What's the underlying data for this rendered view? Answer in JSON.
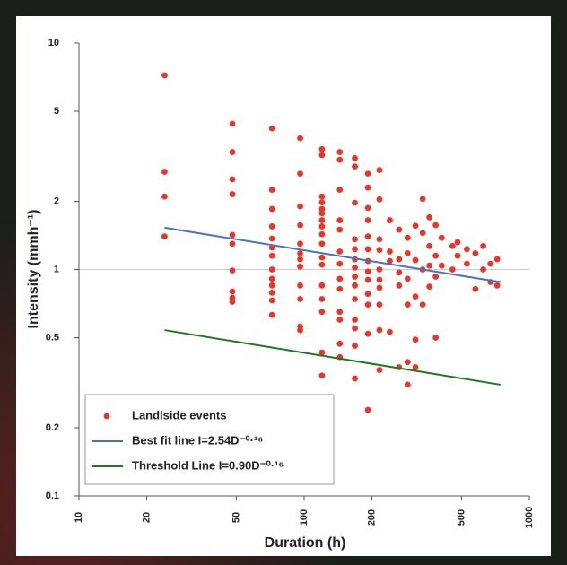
{
  "chart_data": {
    "type": "scatter",
    "x_label": "Duration (h)",
    "y_label": "Intensity (mmh⁻¹)",
    "log_x": true,
    "log_y": true,
    "xlim": [
      10,
      1000
    ],
    "xticks": [
      10,
      20,
      50,
      100,
      200,
      500,
      1000
    ],
    "ylim": [
      0.1,
      10
    ],
    "yticks": [
      0.1,
      0.2,
      0.5,
      1,
      2,
      5,
      10
    ],
    "reference_line_y": 1,
    "legend": "lower left",
    "series": [
      {
        "name": "Landlside events",
        "type": "scatter",
        "color": "#e8372a",
        "x": [
          24,
          24,
          24,
          24,
          48,
          48,
          48,
          48,
          48,
          48,
          48,
          48,
          48,
          48,
          72,
          72,
          72,
          72,
          72,
          72,
          72,
          72,
          72,
          72,
          72,
          72,
          72,
          96,
          96,
          96,
          96,
          96,
          96,
          96,
          96,
          96,
          96,
          96,
          96,
          120,
          120,
          120,
          120,
          120,
          120,
          120,
          120,
          120,
          120,
          120,
          120,
          120,
          120,
          120,
          120,
          120,
          144,
          144,
          144,
          144,
          144,
          144,
          144,
          144,
          144,
          144,
          144,
          144,
          144,
          168,
          168,
          168,
          168,
          168,
          168,
          168,
          168,
          168,
          168,
          168,
          168,
          168,
          168,
          192,
          192,
          192,
          192,
          192,
          192,
          192,
          192,
          192,
          192,
          192,
          192,
          192,
          216,
          216,
          216,
          216,
          216,
          216,
          216,
          216,
          216,
          216,
          240,
          240,
          240,
          240,
          264,
          264,
          264,
          264,
          264,
          288,
          288,
          288,
          288,
          288,
          288,
          312,
          312,
          312,
          312,
          312,
          336,
          336,
          336,
          336,
          360,
          360,
          360,
          360,
          384,
          384,
          384,
          384,
          408,
          408,
          456,
          456,
          480,
          480,
          528,
          528,
          576,
          576,
          624,
          624,
          672,
          672,
          720,
          720
        ],
        "values": [
          7.2,
          2.7,
          2.1,
          1.4,
          4.4,
          3.3,
          2.5,
          2.15,
          1.42,
          1.3,
          0.99,
          0.8,
          0.75,
          0.72,
          4.2,
          2.25,
          1.85,
          1.55,
          1.37,
          1.25,
          1.15,
          1.0,
          0.91,
          0.85,
          0.79,
          0.73,
          0.63,
          3.8,
          2.65,
          1.9,
          1.57,
          1.3,
          1.18,
          1.11,
          1.03,
          0.85,
          0.74,
          0.56,
          0.54,
          3.4,
          3.2,
          2.1,
          1.98,
          1.85,
          1.77,
          1.65,
          1.55,
          1.43,
          1.3,
          1.13,
          1.05,
          0.85,
          0.74,
          0.65,
          0.43,
          0.34,
          3.3,
          3.05,
          2.25,
          1.65,
          1.5,
          1.2,
          1.06,
          0.91,
          0.82,
          0.65,
          0.6,
          0.47,
          0.41,
          3.1,
          2.85,
          1.97,
          1.36,
          1.23,
          1.11,
          1.02,
          0.93,
          0.85,
          0.74,
          0.6,
          0.55,
          0.46,
          0.33,
          2.65,
          2.3,
          1.87,
          1.65,
          1.4,
          1.23,
          1.09,
          0.98,
          0.9,
          0.78,
          0.7,
          0.52,
          0.24,
          2.75,
          2.04,
          1.36,
          1.22,
          1.0,
          0.9,
          0.83,
          0.7,
          0.54,
          0.36,
          1.65,
          1.2,
          1.09,
          0.53,
          1.5,
          1.11,
          0.97,
          0.85,
          0.37,
          1.38,
          1.18,
          0.91,
          0.7,
          0.39,
          0.31,
          1.56,
          1.1,
          0.76,
          0.49,
          0.37,
          2.05,
          1.45,
          1.0,
          0.7,
          1.7,
          1.27,
          1.04,
          0.84,
          1.57,
          1.15,
          0.93,
          0.5,
          1.38,
          1.04,
          1.27,
          1.0,
          1.32,
          1.15,
          1.23,
          1.06,
          1.18,
          0.82,
          1.27,
          1.0,
          1.06,
          0.88,
          1.11,
          0.85
        ]
      },
      {
        "name": "Best fit line I=2.54D⁻⁰·¹⁶",
        "type": "line",
        "color": "#4472c4",
        "x": [
          24,
          744
        ],
        "values": [
          1.53,
          0.88
        ]
      },
      {
        "name": "Threshold Line I=0.90D⁻⁰·¹⁶",
        "type": "line",
        "color": "#1e7a1e",
        "x": [
          24,
          744
        ],
        "values": [
          0.54,
          0.31
        ]
      }
    ]
  }
}
